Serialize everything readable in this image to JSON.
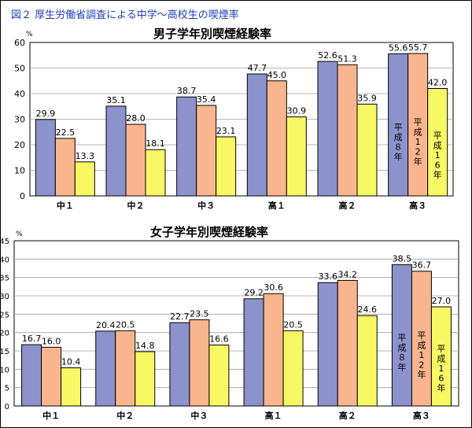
{
  "figure_title": "図２ 厚生労働省調査による中学～高校生の喫煙率",
  "chart_data": [
    {
      "type": "bar",
      "title": "男子学年別喫煙経験率",
      "ylabel": "%",
      "ylim": [
        0,
        60
      ],
      "yticks": [
        0,
        10,
        20,
        30,
        40,
        50,
        60
      ],
      "categories": [
        "中１",
        "中２",
        "中３",
        "高１",
        "高２",
        "高３"
      ],
      "series": [
        {
          "name": "平成８年",
          "color": "#8c92cc",
          "values": [
            29.9,
            35.1,
            38.7,
            47.7,
            52.6,
            55.6
          ]
        },
        {
          "name": "平成12年",
          "color": "#f9b58d",
          "values": [
            22.5,
            28.0,
            35.4,
            45.0,
            51.3,
            55.7
          ]
        },
        {
          "name": "平成16年",
          "color": "#f8f865",
          "values": [
            13.3,
            18.1,
            23.1,
            30.9,
            35.9,
            42.0
          ]
        }
      ],
      "grid": true,
      "legend": "inside-last-group"
    },
    {
      "type": "bar",
      "title": "女子学年別喫煙経験率",
      "ylabel": "%",
      "ylim": [
        0,
        45
      ],
      "yticks": [
        0,
        5,
        10,
        15,
        20,
        25,
        30,
        35,
        40,
        45
      ],
      "categories": [
        "中１",
        "中２",
        "中３",
        "高１",
        "高２",
        "高３"
      ],
      "series": [
        {
          "name": "平成８年",
          "color": "#8c92cc",
          "values": [
            16.7,
            20.4,
            22.7,
            29.2,
            33.6,
            38.5
          ]
        },
        {
          "name": "平成12年",
          "color": "#f9b58d",
          "values": [
            16.0,
            20.5,
            23.5,
            30.6,
            34.2,
            36.7
          ]
        },
        {
          "name": "平成16年",
          "color": "#f8f865",
          "values": [
            10.4,
            14.8,
            16.6,
            20.5,
            24.6,
            27.0
          ]
        }
      ],
      "grid": true,
      "legend": "inside-last-group"
    }
  ]
}
